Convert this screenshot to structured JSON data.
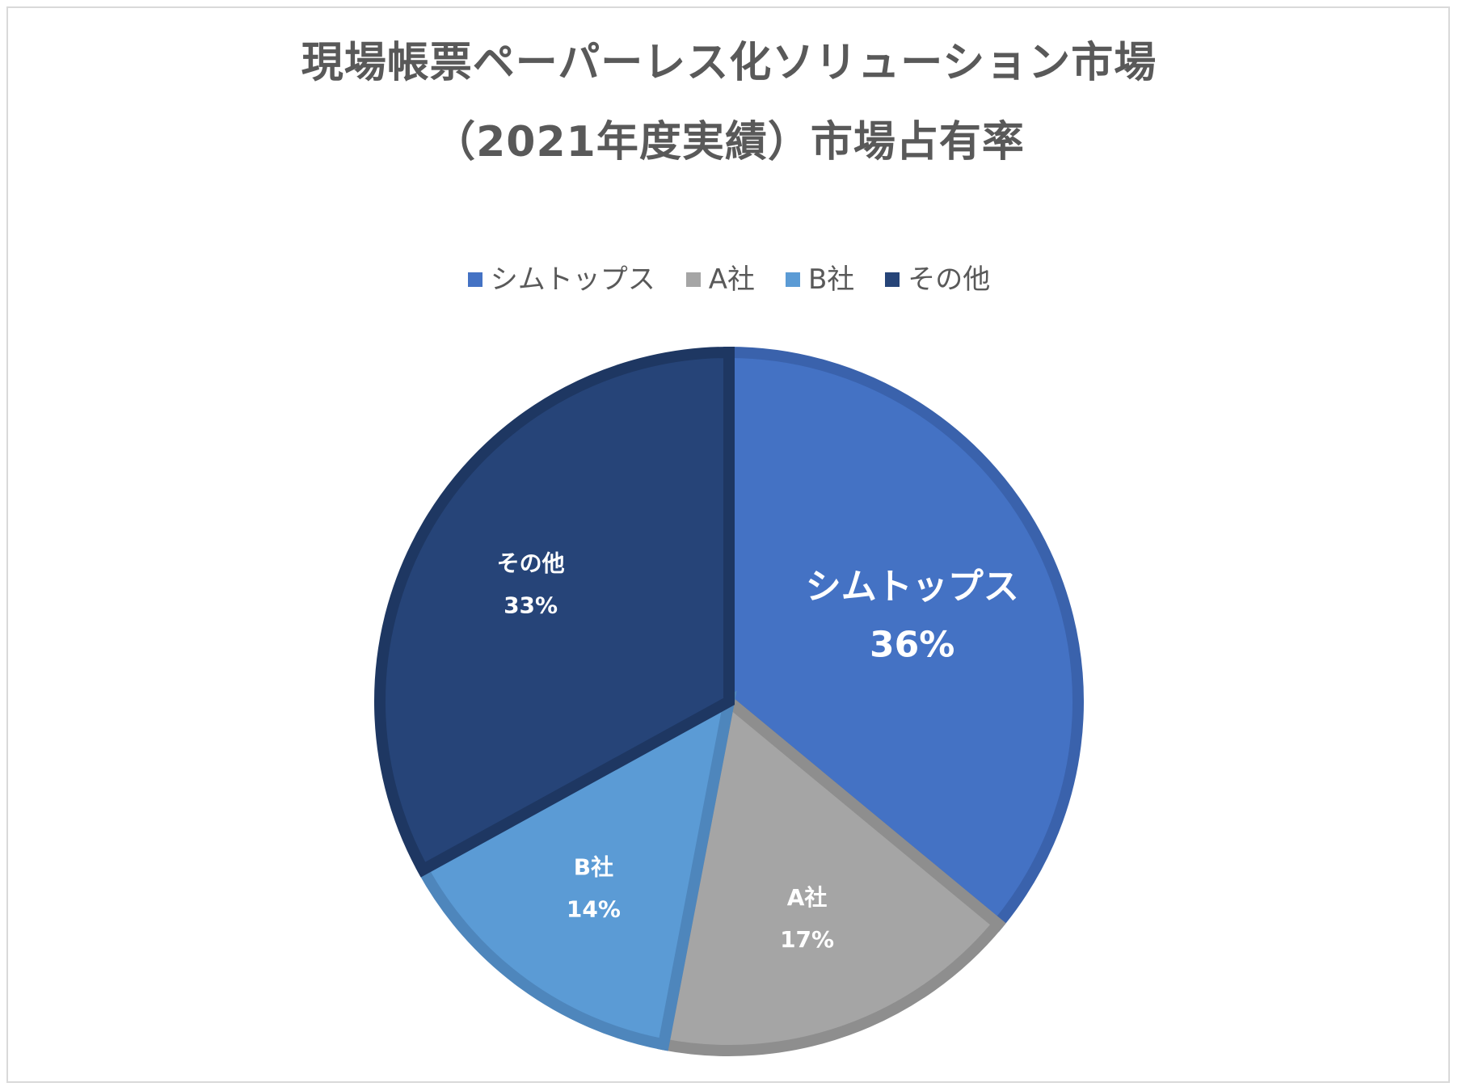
{
  "chart_data": {
    "type": "pie",
    "title_line1": "現場帳票ペーパーレス化ソリューション市場",
    "title_line2": "（2021年度実績）市場占有率",
    "legend_position": "top",
    "slices": [
      {
        "name": "シムトップス",
        "value": 36,
        "label": "36%",
        "color": "#4472C4",
        "border": "#3A62AC",
        "label_style": "large"
      },
      {
        "name": "A社",
        "value": 17,
        "label": "17%",
        "color": "#A5A5A5",
        "border": "#8E8E8E",
        "label_style": "normal"
      },
      {
        "name": "B社",
        "value": 14,
        "label": "14%",
        "color": "#5B9BD5",
        "border": "#4E86BC",
        "label_style": "normal"
      },
      {
        "name": "その他",
        "value": 33,
        "label": "33%",
        "color": "#264478",
        "border": "#1E3762",
        "label_style": "normal"
      }
    ]
  }
}
